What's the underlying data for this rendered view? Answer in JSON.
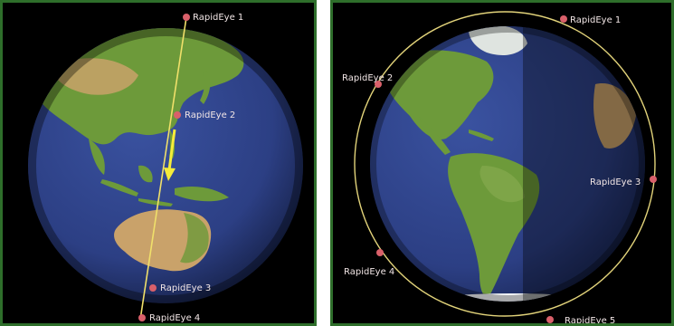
{
  "left_view": {
    "satellites": [
      {
        "label": "RapidEye 1"
      },
      {
        "label": "RapidEye 2"
      },
      {
        "label": "RapidEye 3"
      },
      {
        "label": "RapidEye 4"
      }
    ]
  },
  "right_view": {
    "satellites": [
      {
        "label": "RapidEye 1"
      },
      {
        "label": "RapidEye 2"
      },
      {
        "label": "RapidEye 3"
      },
      {
        "label": "RapidEye 4"
      },
      {
        "label": "RapidEye 5"
      }
    ]
  },
  "colors": {
    "frame": "#2e6e2b",
    "space": "#000000",
    "ocean": "#2c3f84",
    "land": "#6d9a3a",
    "desert": "#c9a26a",
    "orbit_path": "#f0e06a",
    "satellite": "#d9606a"
  }
}
